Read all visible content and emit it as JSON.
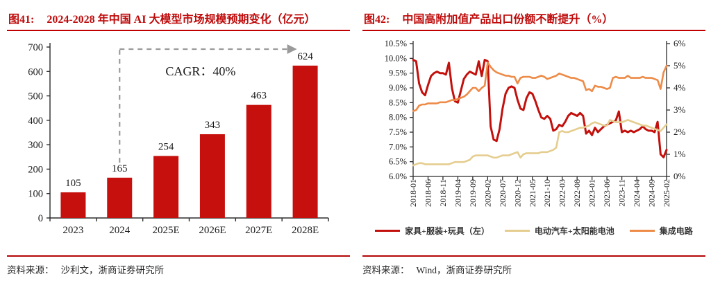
{
  "figure41": {
    "label": "图41:",
    "title": "2024-2028 年中国 AI 大模型市场规模预期变化（亿元）",
    "source_label": "资料来源：",
    "source": "沙利文，浙商证券研究所"
  },
  "figure42": {
    "label": "图42:",
    "title": "中国高附加值产品出口份额不断提升（%）",
    "source_label": "资料来源：",
    "source": "Wind，浙商证券研究所"
  },
  "colors": {
    "title_red": "#bf0a0a",
    "rule_red": "#c00000",
    "bar_red": "#c5100d",
    "line_red": "#c3100c",
    "line_tan": "#e5cd8f",
    "line_orange": "#ed8b47",
    "annotation_gray": "#9a9a9a",
    "axis_color": "#2b2b2b"
  },
  "chart_data": [
    {
      "type": "bar",
      "title": "2024-2028 年中国 AI 大模型市场规模预期变化（亿元）",
      "categories": [
        "2023",
        "2024",
        "2025E",
        "2026E",
        "2027E",
        "2028E"
      ],
      "values": [
        105,
        165,
        254,
        343,
        463,
        624
      ],
      "ylim": [
        0,
        700
      ],
      "yticks": [
        0,
        100,
        200,
        300,
        400,
        500,
        600,
        700
      ],
      "grid": false,
      "bar_color": "#c5100d",
      "annotation": {
        "text": "CAGR：40%",
        "from_category": "2024",
        "to_category": "2028E"
      }
    },
    {
      "type": "line",
      "title": "中国高附加值产品出口份额不断提升（%）",
      "x_tick_labels": [
        "2018-01",
        "2018-06",
        "2018-11",
        "2019-04",
        "2019-09",
        "2020-02",
        "2020-07",
        "2020-12",
        "2021-05",
        "2021-10",
        "2022-03",
        "2022-08",
        "2023-01",
        "2023-06",
        "2023-11",
        "2024-04",
        "2024-09",
        "2025-02"
      ],
      "months_per_tick": 5,
      "left_axis": {
        "min": 6.0,
        "max": 10.5,
        "ticks": [
          "10.5%",
          "10.0%",
          "9.5%",
          "9.0%",
          "8.5%",
          "8.0%",
          "7.5%",
          "7.0%",
          "6.5%",
          "6.0%"
        ]
      },
      "right_axis": {
        "min": 0,
        "max": 6,
        "ticks": [
          "6%",
          "5%",
          "4%",
          "3%",
          "2%",
          "1%",
          "0%"
        ]
      },
      "legend_position": "bottom",
      "series": [
        {
          "name": "家具+服装+玩具（左）",
          "axis": "left",
          "color": "#c3100c",
          "values": [
            9.95,
            9.9,
            9.15,
            8.85,
            8.75,
            9.1,
            9.4,
            9.5,
            9.55,
            9.5,
            9.5,
            9.45,
            9.85,
            9.0,
            8.55,
            8.5,
            8.9,
            9.3,
            9.45,
            9.55,
            9.5,
            9.45,
            9.9,
            9.4,
            9.95,
            9.9,
            7.7,
            7.25,
            7.2,
            7.6,
            8.3,
            8.8,
            9.0,
            9.05,
            9.0,
            8.6,
            8.3,
            8.25,
            8.65,
            8.85,
            8.8,
            8.55,
            8.25,
            8.0,
            7.95,
            8.05,
            7.95,
            7.55,
            7.6,
            7.75,
            7.7,
            7.85,
            8.05,
            8.15,
            8.1,
            8.05,
            8.15,
            8.05,
            7.45,
            7.55,
            7.4,
            7.65,
            7.5,
            7.6,
            7.7,
            7.75,
            7.8,
            7.85,
            7.9,
            8.2,
            7.5,
            7.55,
            7.5,
            7.55,
            7.5,
            7.55,
            7.6,
            7.7,
            7.6,
            7.55,
            7.55,
            7.5,
            7.85,
            6.75,
            6.65,
            6.9
          ]
        },
        {
          "name": "电动汽车+太阳能电池",
          "axis": "right",
          "color": "#e5cd8f",
          "values": [
            0.5,
            0.55,
            0.6,
            0.6,
            0.55,
            0.55,
            0.55,
            0.55,
            0.55,
            0.55,
            0.55,
            0.55,
            0.55,
            0.6,
            0.65,
            0.65,
            0.65,
            0.65,
            0.7,
            0.75,
            0.9,
            0.95,
            0.95,
            0.95,
            0.95,
            0.95,
            0.9,
            0.85,
            0.85,
            0.9,
            0.95,
            0.95,
            0.95,
            1.0,
            1.05,
            1.1,
            0.85,
            1.0,
            1.05,
            1.05,
            1.05,
            1.05,
            1.05,
            1.1,
            1.1,
            1.1,
            1.15,
            1.2,
            1.3,
            2.0,
            2.05,
            2.0,
            2.0,
            2.05,
            2.1,
            2.15,
            2.2,
            2.2,
            2.25,
            2.3,
            2.4,
            2.45,
            2.4,
            2.35,
            2.3,
            2.3,
            2.55,
            2.5,
            2.45,
            2.45,
            2.45,
            2.5,
            2.55,
            2.5,
            2.45,
            2.4,
            2.35,
            2.3,
            2.3,
            2.25,
            2.2,
            2.15,
            2.1,
            2.05,
            2.2,
            2.35
          ]
        },
        {
          "name": "集成电路",
          "axis": "right",
          "color": "#ed8b47",
          "values": [
            2.95,
            3.0,
            3.2,
            3.25,
            3.25,
            3.3,
            3.3,
            3.3,
            3.3,
            3.35,
            3.35,
            3.35,
            3.4,
            3.45,
            3.45,
            3.5,
            3.55,
            3.6,
            3.7,
            3.85,
            4.0,
            4.0,
            3.85,
            4.0,
            4.1,
            5.15,
            4.95,
            4.8,
            4.7,
            4.65,
            4.6,
            4.55,
            4.55,
            4.5,
            4.5,
            4.2,
            4.45,
            4.5,
            4.5,
            4.5,
            4.45,
            4.45,
            4.5,
            4.55,
            4.5,
            4.4,
            4.45,
            4.5,
            4.55,
            4.65,
            4.6,
            4.55,
            4.5,
            4.45,
            4.45,
            4.4,
            4.35,
            4.3,
            3.9,
            3.95,
            3.85,
            4.1,
            4.05,
            4.05,
            4.0,
            3.95,
            4.0,
            4.45,
            4.5,
            4.45,
            4.45,
            4.45,
            4.55,
            4.45,
            4.45,
            4.45,
            4.45,
            4.5,
            4.45,
            4.45,
            4.45,
            4.4,
            4.35,
            3.95,
            4.7,
            5.0
          ]
        }
      ]
    }
  ]
}
